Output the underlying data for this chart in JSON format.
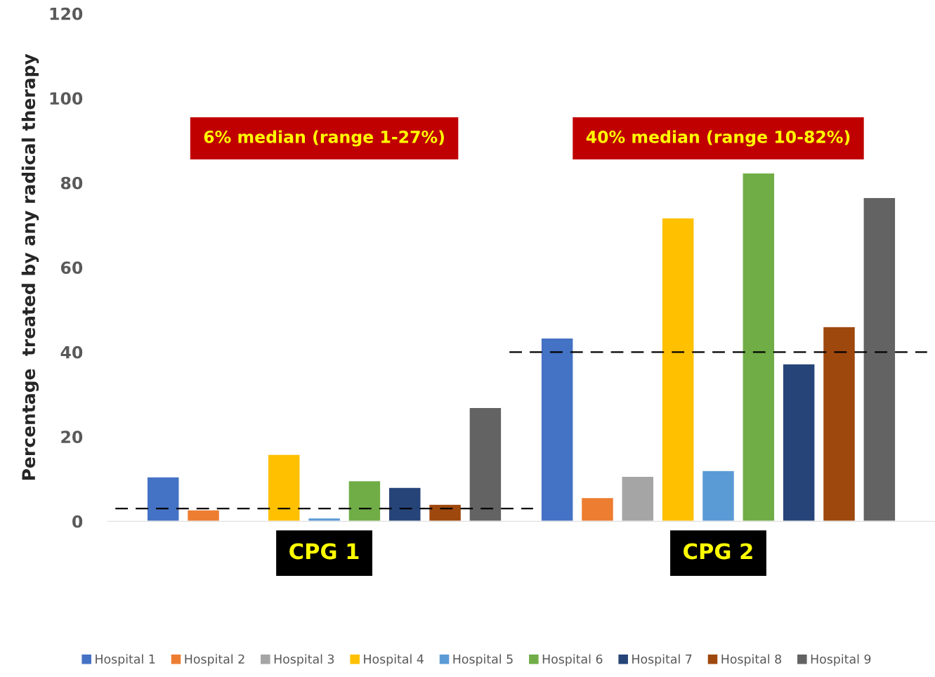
{
  "chart_data": {
    "type": "bar",
    "ylabel": "Percentage  treated by any radical therapy",
    "categories": [
      "CPG 1",
      "CPG 2"
    ],
    "series": [
      {
        "name": "Hospital 1",
        "color": "#4472c4",
        "values": [
          10.5,
          43.3
        ]
      },
      {
        "name": "Hospital 2",
        "color": "#ed7d31",
        "values": [
          2.7,
          5.6
        ]
      },
      {
        "name": "Hospital 3",
        "color": "#a5a5a5",
        "values": [
          null,
          10.6
        ]
      },
      {
        "name": "Hospital 4",
        "color": "#ffc000",
        "values": [
          15.8,
          71.7
        ]
      },
      {
        "name": "Hospital 5",
        "color": "#5b9bd5",
        "values": [
          0.8,
          12.0
        ]
      },
      {
        "name": "Hospital 6",
        "color": "#70ad47",
        "values": [
          9.6,
          82.3
        ]
      },
      {
        "name": "Hospital 7",
        "color": "#264478",
        "values": [
          8.0,
          37.2
        ]
      },
      {
        "name": "Hospital 8",
        "color": "#9e480e",
        "values": [
          4.0,
          46.0
        ]
      },
      {
        "name": "Hospital 9",
        "color": "#636363",
        "values": [
          26.9,
          76.5
        ]
      }
    ],
    "ylim": [
      0,
      120
    ],
    "yticks": [
      0,
      20,
      40,
      60,
      80,
      100,
      120
    ],
    "ref_lines": [
      {
        "axis": "y",
        "value": 3,
        "color": "#000000",
        "line_style": "dashed"
      },
      {
        "axis": "y",
        "value": 40,
        "color": "#000000",
        "line_style": "dashed"
      }
    ],
    "annotations": [
      "6% median (range 1-27%)",
      "40% median (range 10-82%)"
    ],
    "grid": false,
    "legend": "bottom"
  }
}
